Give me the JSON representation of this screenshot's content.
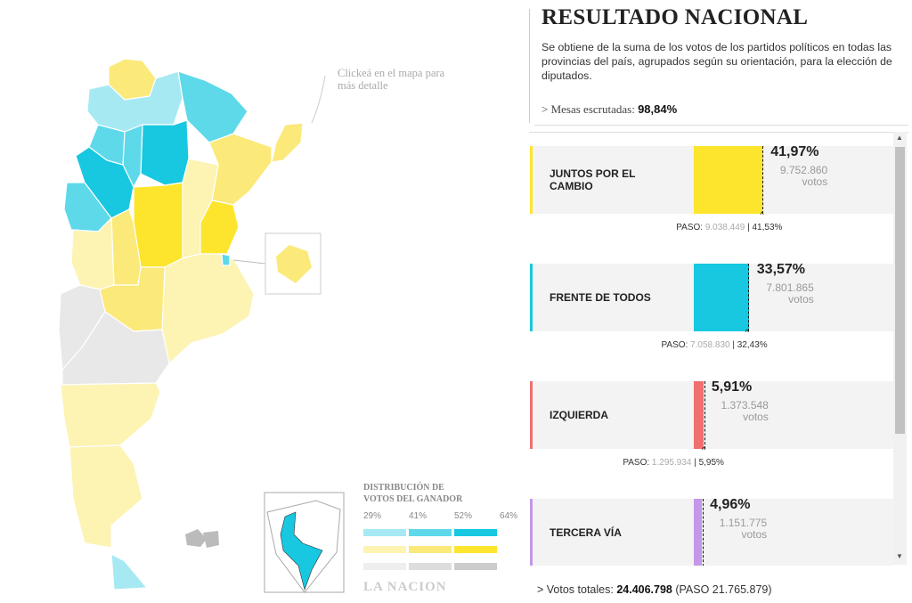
{
  "header": {
    "title": "RESULTADO NACIONAL",
    "description": "Se obtiene de la suma de los votos de los partidos políticos en todas las provincias del país, agrupados según su orientación, para la elección de diputados."
  },
  "progress": {
    "label": "> Mesas escrutadas:",
    "value": "98,84%"
  },
  "votes_unit": "votos",
  "paso_label": "PASO:",
  "parties": [
    {
      "name": "JUNTOS POR EL CAMBIO",
      "share": 41.97,
      "share_label": "41,97%",
      "votes": "9.752.860",
      "paso_votes": "9.038.449",
      "paso_share": 41.53,
      "paso_share_label": "41,53%",
      "color": "#fde52d"
    },
    {
      "name": "FRENTE DE TODOS",
      "share": 33.57,
      "share_label": "33,57%",
      "votes": "7.801.865",
      "paso_votes": "7.058.830",
      "paso_share": 32.43,
      "paso_share_label": "32,43%",
      "color": "#17c8e0"
    },
    {
      "name": "IZQUIERDA",
      "share": 5.91,
      "share_label": "5,91%",
      "votes": "1.373.548",
      "paso_votes": "1.295.934",
      "paso_share": 5.95,
      "paso_share_label": "5,95%",
      "color": "#f07070"
    },
    {
      "name": "TERCERA VÍA",
      "share": 4.96,
      "share_label": "4,96%",
      "votes": "1.151.775",
      "paso_votes": null,
      "paso_share": null,
      "paso_share_label": null,
      "color": "#c497e8"
    }
  ],
  "totals": {
    "label": "> Votos totales:",
    "value": "24.406.798",
    "paso": "(PASO 21.765.879)"
  },
  "map": {
    "hint": "Clickeá en el mapa para más detalle",
    "legend_title": "DISTRIBUCIÓN DE VOTOS DEL GANADOR",
    "legend_ticks": [
      "29%",
      "41%",
      "52%",
      "64%"
    ],
    "logo": "LA NACION"
  }
}
